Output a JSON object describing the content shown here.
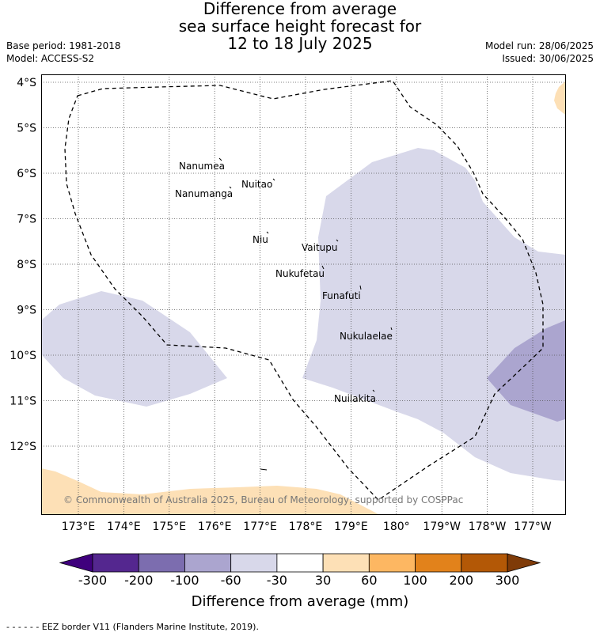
{
  "title": {
    "line1": "Difference from average",
    "line2": "sea surface height forecast for",
    "line3": "12 to 18 July 2025"
  },
  "meta_left": {
    "base_period": "Base period: 1981-2018",
    "model": "Model: ACCESS-S2"
  },
  "meta_right": {
    "model_run": "Model run: 28/06/2025",
    "issued": "Issued: 30/06/2025"
  },
  "lat_labels": [
    "4°S",
    "5°S",
    "6°S",
    "7°S",
    "8°S",
    "9°S",
    "10°S",
    "11°S",
    "12°S"
  ],
  "lon_labels": [
    "173°E",
    "174°E",
    "175°E",
    "176°E",
    "177°E",
    "178°E",
    "179°E",
    "180°",
    "179°W",
    "178°W",
    "177°W"
  ],
  "places": [
    {
      "name": "Nanumea"
    },
    {
      "name": "Nuitao"
    },
    {
      "name": "Nanumanga"
    },
    {
      "name": "Niu"
    },
    {
      "name": "Vaitupu"
    },
    {
      "name": "Nukufetau"
    },
    {
      "name": "Funafuti"
    },
    {
      "name": "Nukulaelae"
    },
    {
      "name": "Nuilakita"
    }
  ],
  "copyright": "© Commonwealth of Australia 2025, Bureau of Meteorology, supported by COSPPac",
  "colorbar": {
    "ticks": [
      "-300",
      "-200",
      "-100",
      "-60",
      "-30",
      "30",
      "60",
      "100",
      "200",
      "300"
    ],
    "colors": [
      "#54278f",
      "#7c6daf",
      "#aba5cf",
      "#d8d8ea",
      "#ffffff",
      "#fde0b6",
      "#fdb762",
      "#e2821b",
      "#b35806"
    ],
    "under_color": "#3f007d",
    "over_color": "#7f3b08",
    "title": "Difference from average (mm)"
  },
  "footer": "- -  - -  - - EEZ border V11 (Flanders Marine Institute, 2019)."
}
